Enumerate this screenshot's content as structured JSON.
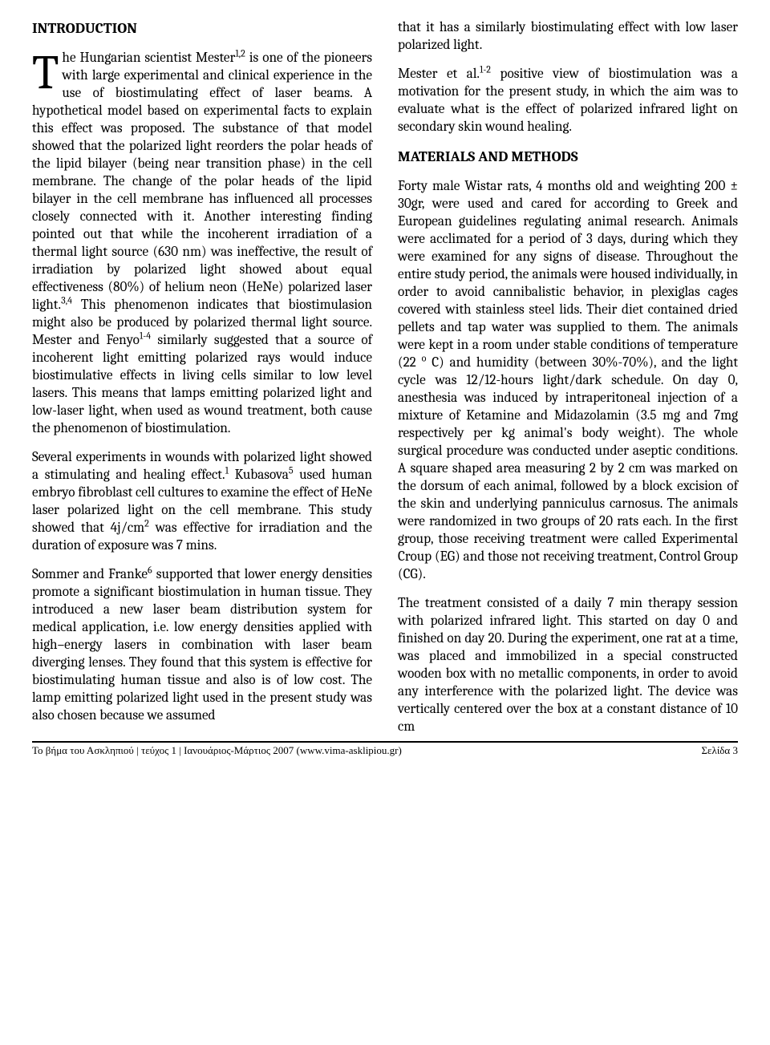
{
  "heading_intro": "INTRODUCTION",
  "heading_materials": "MATERIALS AND METHODS",
  "dropcap": "T",
  "p1_rest": "he Hungarian scientist Mester",
  "p1_sup1": "1,2",
  "p1_cont1": " is one of the pioneers with large experimental and clinical experience in the use of biostimulating effect of laser beams. A hypothetical model based on experimental facts to explain this effect was proposed. The substance of that model showed that the polarized light reorders the polar heads of the lipid bilayer (being near transition phase) in the cell membrane. The change of the polar heads of the lipid bilayer in the cell membrane has influenced all processes closely connected with it. Another interesting finding pointed out that while the incoherent irradiation of a thermal light source (630 nm) was ineffective, the result of irradiation by polarized light showed about equal effectiveness (80%) of helium neon (HeNe) polarized laser light.",
  "p1_sup2": "3,4",
  "p1_cont2": " This phenomenon indicates that biostimulasion might also be produced by polarized thermal light source. Mester and Fenyo",
  "p1_sup3": "1-4",
  "p1_cont3": " similarly suggested that a source of incoherent light emitting polarized rays would induce biostimulative effects in living cells similar to low level lasers. This means that lamps emitting polarized light and low-laser light, when used as wound treatment, both cause the phenomenon of biostimulation.",
  "p2_a": "Several experiments in wounds with polarized light showed a stimulating and healing effect.",
  "p2_sup1": "1",
  "p2_b": " Kubasova",
  "p2_sup2": "5",
  "p2_c": " used human embryo fibroblast cell cultures to examine the effect of HeNe laser polarized light on the cell membrane. This study showed that 4j/cm",
  "p2_sup3": "2",
  "p2_d": " was effective for irradiation and the duration of exposure was 7 mins.",
  "p3_a": "Sommer and Franke",
  "p3_sup1": "6",
  "p3_b": " supported that lower energy densities promote a significant biostimulation in human tissue. They introduced a new laser beam distribution system for medical application, i.e. low energy densities applied with high–energy lasers in combination with laser beam diverging lenses. They found that this system is effective for biostimulating human tissue and also is of low cost. The lamp emitting polarized light used in the present study was also chosen because we assumed ",
  "p3_c": "that it has a similarly biostimulating effect with low laser polarized light.",
  "p4_a": "Mester et al.",
  "p4_sup1": "1-2",
  "p4_b": " positive view of biostimulation was a motivation for the present study, in which the aim was to evaluate what is the effect of polarized infrared light on secondary skin wound healing.",
  "p5": "Forty male Wistar rats, 4 months old and weighting 200 ± 30gr, were used and cared for according to Greek and European guidelines regulating animal research. Animals were acclimated for a period of 3 days, during which they were examined for any signs of disease. Throughout the entire study period, the animals were housed individually, in order to avoid cannibalistic behavior, in plexiglas cages covered with stainless steel lids. Their diet contained dried pellets and tap water was supplied to them. The animals were kept in a room under stable conditions of temperature (22 ",
  "p5_sup": "o",
  "p5_b": " C) and humidity (between 30%-70%), and the light cycle was 12/12-hours light/dark schedule.  On day 0, anesthesia was induced by intraperitoneal injection of a mixture of Ketamine and Midazolamin (3.5 mg and 7mg respectively per kg animal's body weight). The whole surgical procedure was conducted under aseptic conditions. A square shaped area measuring 2 by 2 cm was marked on the dorsum of each animal, followed by a block excision of the skin and underlying panniculus carnosus. The animals were randomized in two groups of 20 rats each. In the first group, those receiving treatment were called Experimental Croup (EG) and those not receiving treatment, Control Group (CG).",
  "p6": "The treatment consisted of a daily 7 min therapy session with polarized infrared light. This started on day 0 and finished on day 20. During the experiment, one rat at a time, was placed and immobilized in a special constructed wooden box with no metallic components, in order to avoid any interference with the polarized light. The device was vertically centered over the box at a constant distance of 10 cm",
  "footer_left": "Το βήμα του Ασκληπιού | τεύχος 1 | Ιανουάριος-Μάρτιος 2007 (www.vima-asklipiou.gr)",
  "footer_right": "Σελίδα 3"
}
